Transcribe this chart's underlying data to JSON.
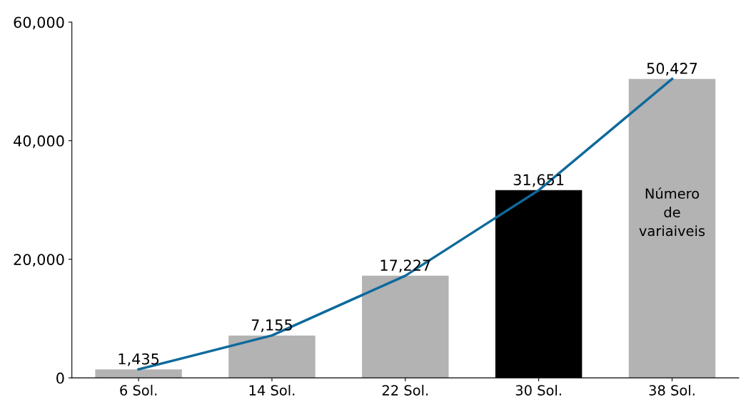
{
  "chart_data": {
    "type": "bar",
    "categories": [
      "6 Sol.",
      "14 Sol.",
      "22 Sol.",
      "30 Sol.",
      "38 Sol."
    ],
    "series": [
      {
        "name": "Número de variaiveis",
        "colors": [
          "#b3b3b3",
          "#b3b3b3",
          "#b3b3b3",
          "#000000",
          "#b3b3b3"
        ],
        "values": [
          1435,
          7155,
          17227,
          31651,
          50427
        ],
        "value_labels": [
          "1,435",
          "7,155",
          "17,227",
          "31,651",
          "50,427"
        ]
      },
      {
        "type": "line",
        "color": "#0e6a9c",
        "values": [
          1435,
          7155,
          17227,
          31651,
          50427
        ],
        "marker": "none",
        "line_style": "solid"
      }
    ],
    "ylim": [
      0,
      60000
    ],
    "yticks": [
      0,
      {
        "value": 20000,
        "label": "20,000"
      },
      {
        "value": 40000,
        "label": "40,000"
      },
      {
        "value": 60000,
        "label": "60,000"
      }
    ],
    "grid": false,
    "legend": false
  }
}
